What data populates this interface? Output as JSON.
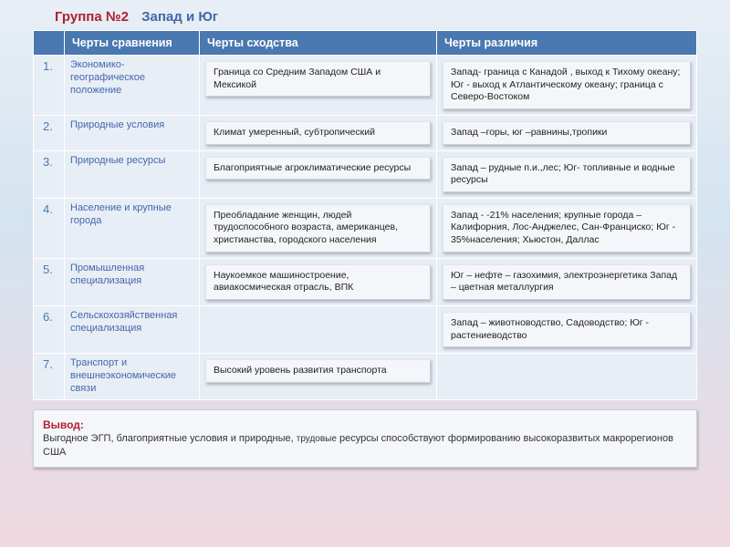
{
  "title": {
    "group": "Группа №2",
    "topic": "Запад и Юг"
  },
  "colors": {
    "header_bg": "#4a78b0",
    "header_text": "#ffffff",
    "title_red": "#b02030",
    "title_blue": "#4466aa",
    "cell_bg": "#e8eef6",
    "chip_bg": "#f4f6fa",
    "chip_border": "#c8d0dc"
  },
  "columns": {
    "num": "",
    "c1": "Черты сравнения",
    "c2": "Черты   сходства",
    "c3": "Черты различия"
  },
  "rows": [
    {
      "n": "1.",
      "label": "Экономико-географическое положение",
      "sim": "Граница со Средним Западом  США и Мексикой",
      "diff": "Запад- граница с Канадой , выход к Тихому океану;\nЮг - выход к Атлантическому океану; граница с Северо-Востоком"
    },
    {
      "n": "2.",
      "label": "Природные условия",
      "sim": "Климат умеренный, субтропический",
      "diff": "Запад –горы,\nюг –равнины,тропики"
    },
    {
      "n": "3.",
      "label": "Природные ресурсы",
      "sim": "Благоприятные агроклиматические ресурсы",
      "diff": "Запад –  рудные п.и.,лес;\nЮг- топливные и  водные ресурсы"
    },
    {
      "n": "4.",
      "label": "Население и крупные города",
      "sim": "Преобладание женщин,\nлюдей трудоспособного возраста, американцев, христианства, городского населения",
      "diff": "Запад -  -21% населения;\nкрупные города – Калифорния, Лос-Анджелес, Сан-Франциско;\nЮг -  35%населения; Хьюстон, Даллас"
    },
    {
      "n": "5.",
      "label": "Промышленная специализация",
      "sim": "Наукоемкое машиностроение, авиакосмическая отрасль, ВПК",
      "diff": "Юг – нефте – газохимия, электроэнергетика\nЗапад – цветная металлургия"
    },
    {
      "n": "6.",
      "label": "Сельскохозяйственная специализация",
      "sim": "",
      "diff": "Запад – животноводство,\nСадоводство; Юг - растениеводство"
    },
    {
      "n": "7.",
      "label": "Транспорт и внешнеэкономические связи",
      "sim": "Высокий уровень развития транспорта",
      "diff": ""
    }
  ],
  "conclusion": {
    "heading": "Вывод:",
    "text_a": "Выгодное ЭГП, благоприятные условия и природные,",
    "text_small": "трудовые",
    "text_b": " ресурсы способствуют формированию высокоразвитых макрорегионов США"
  }
}
